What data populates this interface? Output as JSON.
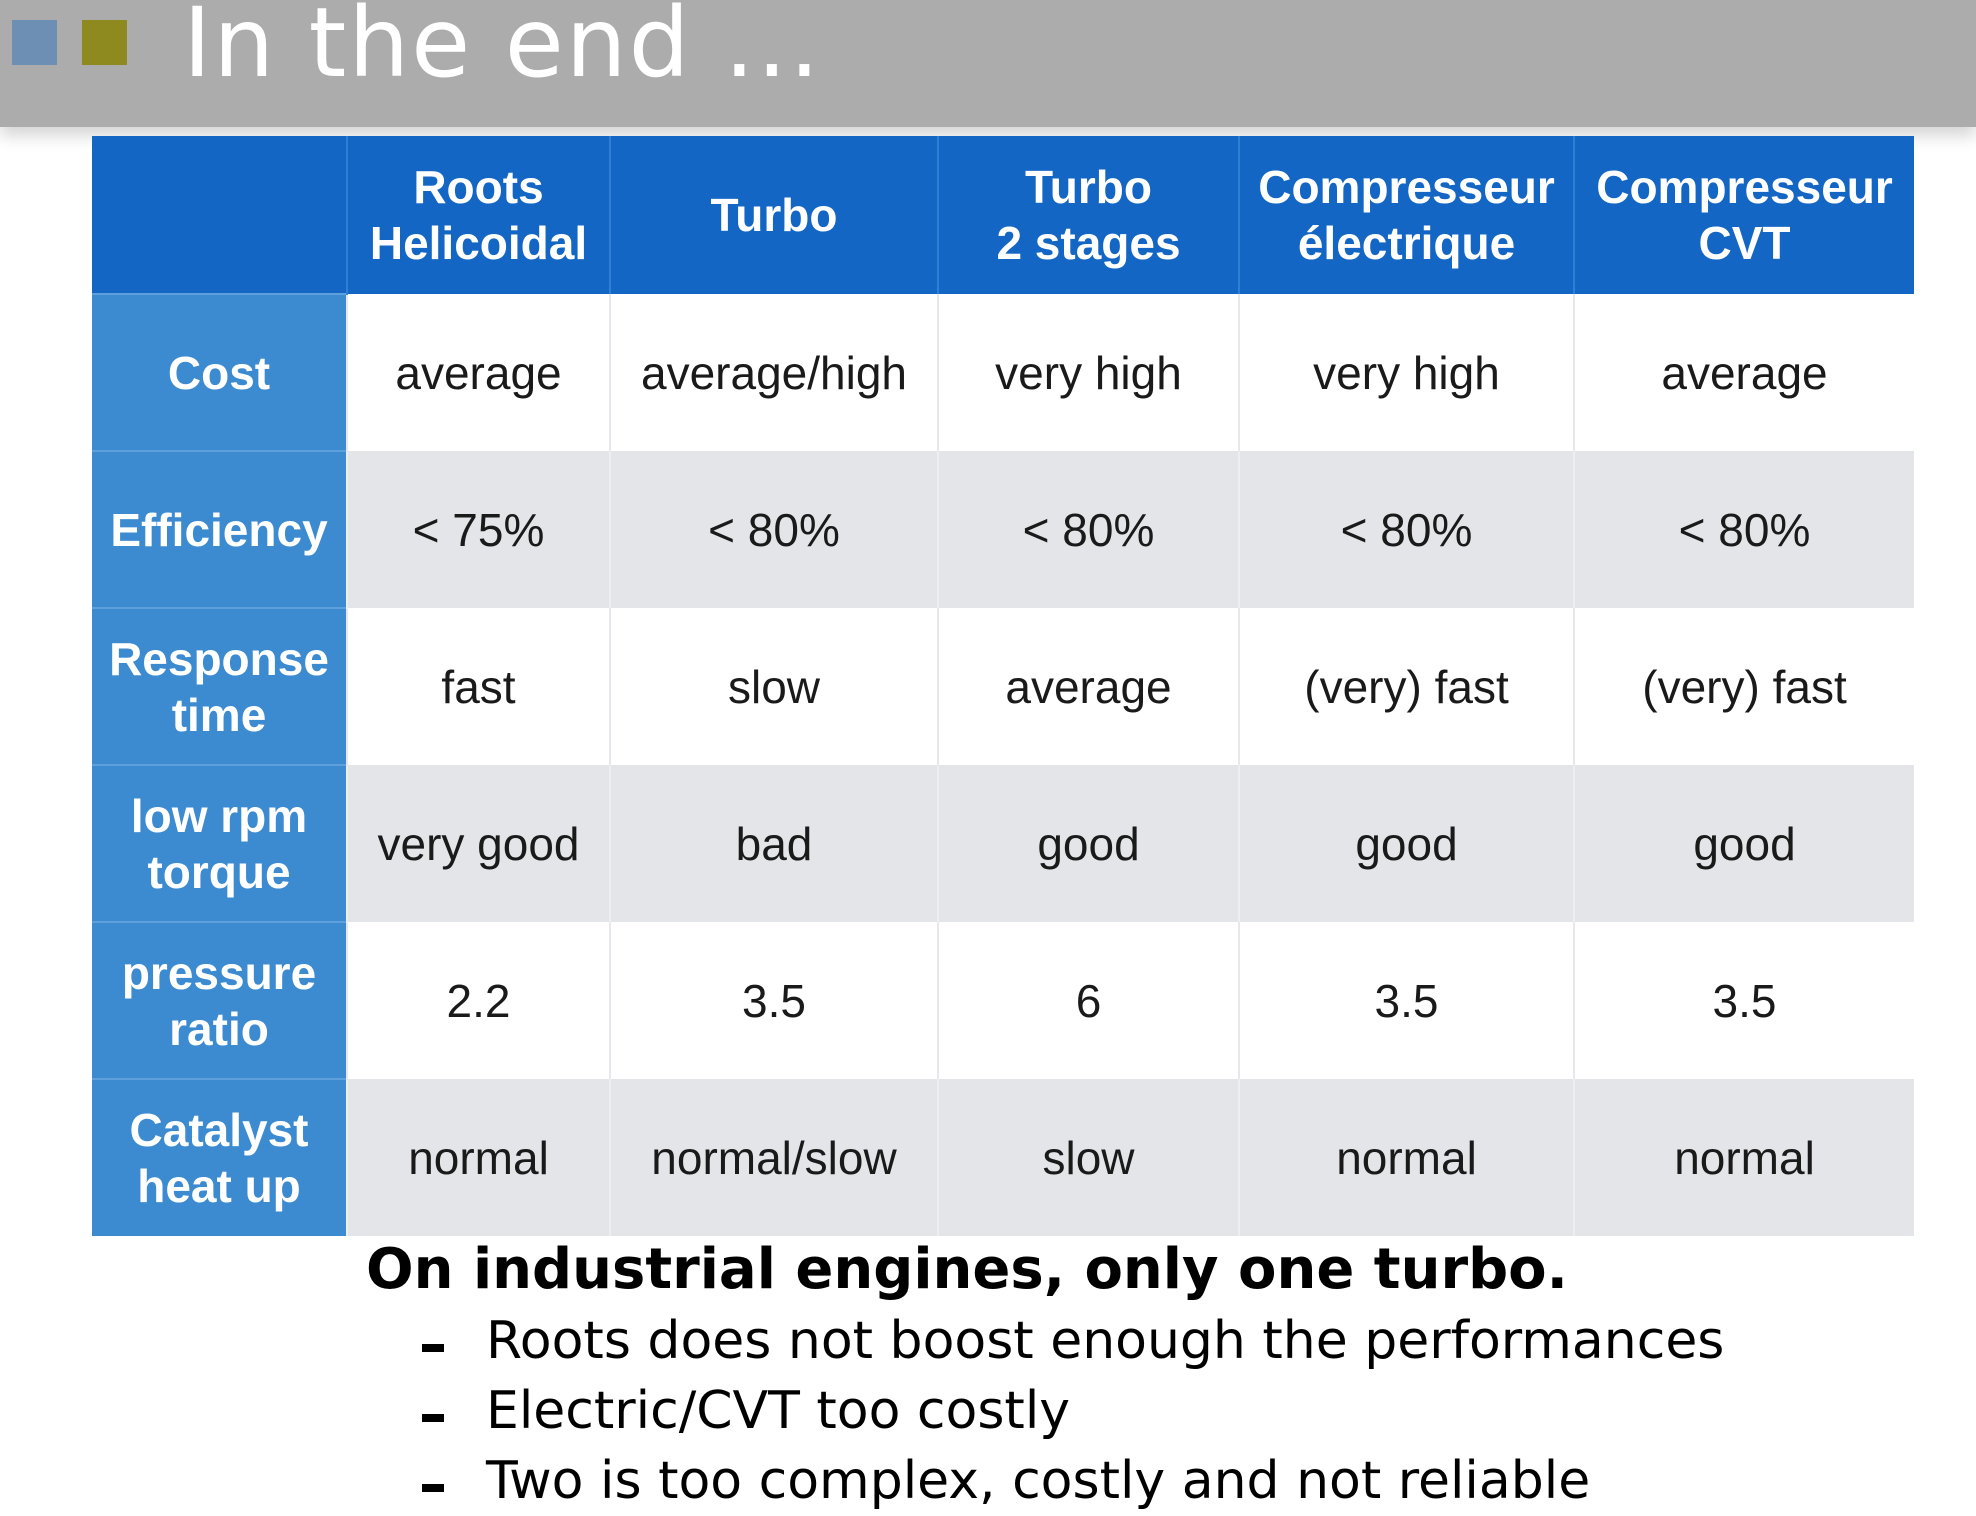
{
  "slide": {
    "title": "In the end ..."
  },
  "table": {
    "headers": [
      "",
      "Roots\nHelicoidal",
      "Turbo",
      "Turbo\n2 stages",
      "Compresseur\nélectrique",
      "Compresseur\nCVT"
    ],
    "rows": [
      {
        "label": "Cost",
        "cells": [
          "average",
          "average/high",
          "very high",
          "very high",
          "average"
        ]
      },
      {
        "label": "Efficiency",
        "cells": [
          "< 75%",
          "< 80%",
          "< 80%",
          "< 80%",
          "< 80%"
        ]
      },
      {
        "label": "Response\ntime",
        "cells": [
          "fast",
          "slow",
          "average",
          "(very) fast",
          "(very) fast"
        ]
      },
      {
        "label": "low rpm\ntorque",
        "cells": [
          "very good",
          "bad",
          "good",
          "good",
          "good"
        ]
      },
      {
        "label": "pressure\nratio",
        "cells": [
          "2.2",
          "3.5",
          "6",
          "3.5",
          "3.5"
        ]
      },
      {
        "label": "Catalyst\nheat up",
        "cells": [
          "normal",
          "normal/slow",
          "slow",
          "normal",
          "normal"
        ]
      }
    ]
  },
  "notes": {
    "headline": "On industrial engines, only one turbo.",
    "bullets": [
      "Roots does not boost enough the performances",
      "Electric/CVT too costly",
      "Two is too complex, costly and not reliable"
    ]
  },
  "colors": {
    "title_bar": "#acacac",
    "header_blue": "#1466c4",
    "row_label_blue": "#3c8ad0",
    "square_blue": "#6d8fb3",
    "square_olive": "#8f8a1f",
    "alt_row_grey": "#e4e5e9"
  }
}
